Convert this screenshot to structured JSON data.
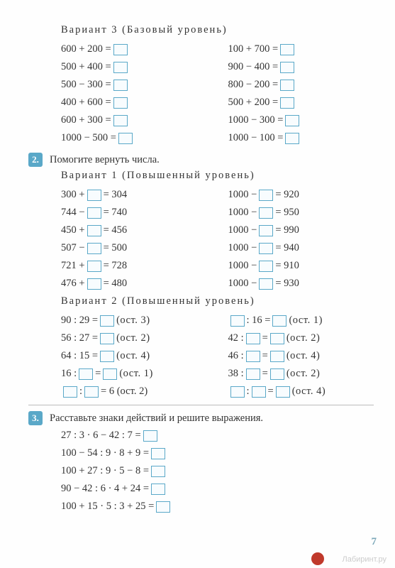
{
  "box_border": "#5aa8c8",
  "section1": {
    "variant_title": "Вариант 3  (Базовый  уровень)",
    "left": [
      "600 + 200 =",
      "500 + 400 =",
      "500 − 300 =",
      "400 + 600 =",
      "600 + 300 =",
      "1000 − 500 ="
    ],
    "right": [
      "100 + 700 =",
      "900 − 400 =",
      "800 − 200 =",
      "500 + 200 =",
      "1000 − 300 =",
      "1000 − 100 ="
    ]
  },
  "task2": {
    "num": "2.",
    "text": "Помогите  вернуть  числа.",
    "variant1_title": "Вариант 1  (Повышенный  уровень)",
    "v1_left": [
      {
        "pre": "300 + ",
        "post": " = 304"
      },
      {
        "pre": "744 − ",
        "post": " = 740"
      },
      {
        "pre": "450 + ",
        "post": " = 456"
      },
      {
        "pre": "507 − ",
        "post": " = 500"
      },
      {
        "pre": "721 + ",
        "post": " = 728"
      },
      {
        "pre": "476 + ",
        "post": " = 480"
      }
    ],
    "v1_right": [
      {
        "pre": "1000 − ",
        "post": " = 920"
      },
      {
        "pre": "1000 − ",
        "post": " = 950"
      },
      {
        "pre": "1000 − ",
        "post": " = 990"
      },
      {
        "pre": "1000 − ",
        "post": " = 940"
      },
      {
        "pre": "1000 − ",
        "post": " = 910"
      },
      {
        "pre": "1000 − ",
        "post": " = 930"
      }
    ],
    "variant2_title": "Вариант 2  (Повышенный  уровень)",
    "v2_left": [
      {
        "pre": "90 : 29 = ",
        "ost": " (ост. 3)"
      },
      {
        "pre": "56 : 27 = ",
        "ost": " (ост. 2)"
      },
      {
        "pre": "64 : 15 = ",
        "ost": " (ост. 4)"
      },
      {
        "type": "mid",
        "pre": "16 : ",
        "post": " = ",
        "ost": " (ост. 1)"
      },
      {
        "type": "three",
        "mid": " : ",
        "post": " = 6 (ост. 2)"
      }
    ],
    "v2_right": [
      {
        "type": "lead",
        "mid": " : 16 = ",
        "ost": " (ост. 1)"
      },
      {
        "pre": "42 : ",
        "post": " = ",
        "ost": " (ост. 2)",
        "type": "mid"
      },
      {
        "pre": "46 : ",
        "post": " = ",
        "ost": " (ост. 4)",
        "type": "mid"
      },
      {
        "pre": "38 : ",
        "post": " = ",
        "ost": " (ост. 2)",
        "type": "mid"
      },
      {
        "type": "three2",
        "mid1": " : ",
        "mid2": " = ",
        "ost": " (ост. 4)"
      }
    ]
  },
  "task3": {
    "num": "3.",
    "text": "Расставьте  знаки  действий  и  решите  выражения.",
    "rows": [
      "27 : 3 · 6 − 42 : 7 =",
      "100 − 54 : 9 · 8 + 9 =",
      "100 + 27 : 9 · 5 − 8 =",
      "90 − 42 : 6 · 4 + 24 =",
      "100 + 15 · 5 : 3 + 25 ="
    ]
  },
  "page_num": "7",
  "watermark": "Лабиринт.ру"
}
